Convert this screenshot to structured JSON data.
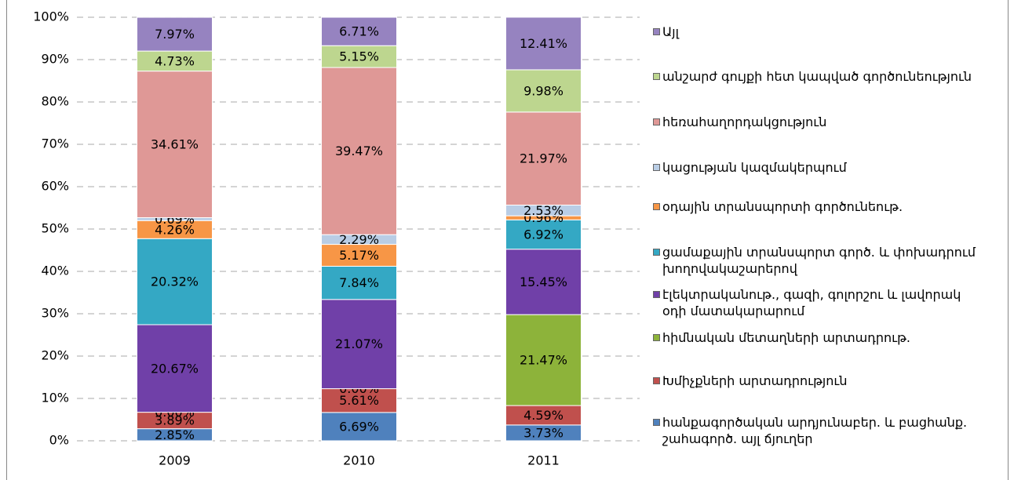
{
  "chart_data": {
    "type": "stacked_bar",
    "categories": [
      "2009",
      "2010",
      "2011"
    ],
    "ylim": [
      0,
      100
    ],
    "yticks": [
      {
        "value": 0,
        "label": "0%"
      },
      {
        "value": 10,
        "label": "10%"
      },
      {
        "value": 20,
        "label": "20%"
      },
      {
        "value": 30,
        "label": "30%"
      },
      {
        "value": 40,
        "label": "40%"
      },
      {
        "value": 50,
        "label": "50%"
      },
      {
        "value": 60,
        "label": "60%"
      },
      {
        "value": 70,
        "label": "70%"
      },
      {
        "value": 80,
        "label": "80%"
      },
      {
        "value": 90,
        "label": "90%"
      },
      {
        "value": 100,
        "label": "100%"
      }
    ],
    "grid": true,
    "legend": "right",
    "series": [
      {
        "name": "հանքագործական արդյունաբեր. և բացհանք. շահագործ. այլ ճյուղեր",
        "color": "#4f81bd",
        "values": [
          2.85,
          6.69,
          3.73
        ],
        "value_labels": [
          "2.85%",
          "6.69%",
          "3.73%"
        ]
      },
      {
        "name": "Խմիչքների արտադրություն",
        "color": "#c0504d",
        "values": [
          3.89,
          5.61,
          4.59
        ],
        "value_labels": [
          "3.89%",
          "5.61%",
          "4.59%"
        ]
      },
      {
        "name": "հիմնական մետաղների արտադրութ.",
        "color": "#8db33a",
        "values": [
          0.0,
          0.0,
          21.47
        ],
        "value_labels": [
          "0.00%",
          "0.00%",
          "21.47%"
        ]
      },
      {
        "name": "էլեկտրականութ., գազի, գոլորշու և լավորակ օդի մատակարարում",
        "color": "#7040a8",
        "values": [
          20.67,
          21.07,
          15.45
        ],
        "value_labels": [
          "20.67%",
          "21.07%",
          "15.45%"
        ]
      },
      {
        "name": "ցամաքային տրանսպորտ գործ. և փոխադրում խողովակաշարերով",
        "color": "#34a8c4",
        "values": [
          20.32,
          7.84,
          6.92
        ],
        "value_labels": [
          "20.32%",
          "7.84%",
          "6.92%"
        ]
      },
      {
        "name": "օդային տրանսպորտի գործունեութ.",
        "color": "#f79646",
        "values": [
          4.26,
          5.17,
          0.96
        ],
        "value_labels": [
          "4.26%",
          "5.17%",
          "0.96%"
        ]
      },
      {
        "name": "կացության կազմակերպում",
        "color": "#b9cde5",
        "values": [
          0.69,
          2.29,
          2.53
        ],
        "value_labels": [
          "0.69%",
          "2.29%",
          "2.53%"
        ]
      },
      {
        "name": "հեռահաղորդակցություն",
        "color": "#df9896",
        "values": [
          34.61,
          39.47,
          21.97
        ],
        "value_labels": [
          "34.61%",
          "39.47%",
          "21.97%"
        ]
      },
      {
        "name": "անշարժ գույքի հետ կապված գործունեություն",
        "color": "#bdd68f",
        "values": [
          4.73,
          5.15,
          9.98
        ],
        "value_labels": [
          "4.73%",
          "5.15%",
          "9.98%"
        ]
      },
      {
        "name": "Այլ",
        "color": "#9683c0",
        "values": [
          7.97,
          6.71,
          12.41
        ],
        "value_labels": [
          "7.97%",
          "6.71%",
          "12.41%"
        ]
      }
    ]
  }
}
